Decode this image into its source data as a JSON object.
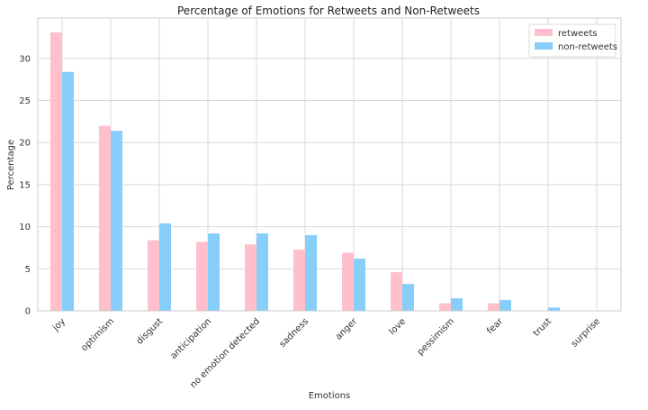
{
  "chart_data": {
    "type": "bar",
    "title": "Percentage of Emotions for Retweets and Non-Retweets",
    "xlabel": "Emotions",
    "ylabel": "Percentage",
    "categories": [
      "joy",
      "optimism",
      "disgust",
      "anticipation",
      "no emotion detected",
      "sadness",
      "anger",
      "love",
      "pessimism",
      "fear",
      "trust",
      "surprise"
    ],
    "series": [
      {
        "name": "retweets",
        "color": "#ffc0cb",
        "values": [
          33.1,
          22.0,
          8.4,
          8.2,
          7.9,
          7.3,
          6.9,
          4.6,
          0.9,
          0.9,
          0.0,
          0.0
        ]
      },
      {
        "name": "non-retweets",
        "color": "#87cefa",
        "values": [
          28.4,
          21.4,
          10.4,
          9.2,
          9.2,
          9.0,
          6.2,
          3.2,
          1.5,
          1.3,
          0.4,
          0.05
        ]
      }
    ],
    "ylim": [
      0,
      34.8
    ],
    "yticks": [
      0,
      5,
      10,
      15,
      20,
      25,
      30
    ],
    "grid": true,
    "legend_position": "top-right"
  }
}
